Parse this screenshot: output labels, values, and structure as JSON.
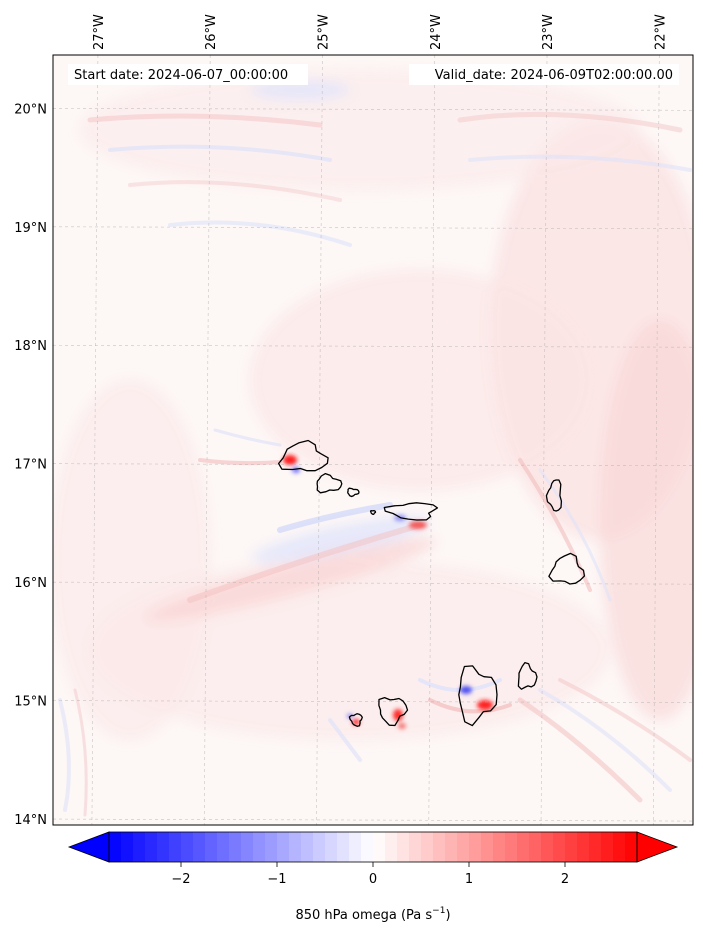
{
  "map": {
    "start_date": "Start date: 2024-06-07_00:00:00",
    "valid_date": "Valid_date: 2024-06-09T02:00:00.00",
    "lon_range": [
      -27.4,
      -21.7
    ],
    "lat_range": [
      13.95,
      20.45
    ],
    "lon_ticks": [
      {
        "value": -27,
        "label": "27°W"
      },
      {
        "value": -26,
        "label": "26°W"
      },
      {
        "value": -25,
        "label": "25°W"
      },
      {
        "value": -24,
        "label": "24°W"
      },
      {
        "value": -23,
        "label": "23°W"
      },
      {
        "value": -22,
        "label": "22°W"
      }
    ],
    "lat_ticks": [
      {
        "value": 20,
        "label": "20°N"
      },
      {
        "value": 19,
        "label": "19°N"
      },
      {
        "value": 18,
        "label": "18°N"
      },
      {
        "value": 17,
        "label": "17°N"
      },
      {
        "value": 16,
        "label": "16°N"
      },
      {
        "value": 15,
        "label": "15°N"
      },
      {
        "value": 14,
        "label": "14°N"
      }
    ],
    "islands": [
      {
        "name": "Santo Antao",
        "lon": -25.17,
        "lat": 17.05,
        "rlon": 0.2,
        "rlat": 0.12
      },
      {
        "name": "Sao Vicente",
        "lon": -24.95,
        "lat": 16.83,
        "rlon": 0.11,
        "rlat": 0.07
      },
      {
        "name": "Santa Luzia",
        "lon": -24.73,
        "lat": 16.76,
        "rlon": 0.05,
        "rlat": 0.03
      },
      {
        "name": "Branco",
        "lon": -24.55,
        "lat": 16.59,
        "rlon": 0.02,
        "rlat": 0.015
      },
      {
        "name": "Sao Nicolau",
        "lon": -24.2,
        "lat": 16.6,
        "rlon": 0.21,
        "rlat": 0.07
      },
      {
        "name": "Sal",
        "lon": -22.93,
        "lat": 16.73,
        "rlon": 0.06,
        "rlat": 0.13
      },
      {
        "name": "Boa Vista",
        "lon": -22.82,
        "lat": 16.1,
        "rlon": 0.14,
        "rlat": 0.12
      },
      {
        "name": "Maio",
        "lon": -23.18,
        "lat": 15.2,
        "rlon": 0.08,
        "rlat": 0.1
      },
      {
        "name": "Santiago",
        "lon": -23.63,
        "lat": 15.05,
        "rlon": 0.17,
        "rlat": 0.22
      },
      {
        "name": "Fogo",
        "lon": -24.38,
        "lat": 14.92,
        "rlon": 0.12,
        "rlat": 0.11
      },
      {
        "name": "Brava",
        "lon": -24.7,
        "lat": 14.84,
        "rlon": 0.05,
        "rlat": 0.05
      }
    ],
    "colors": {
      "negative": "#0000ff",
      "neutral": "#ffffff",
      "positive": "#ff0000",
      "coastline": "#000000",
      "gridline": "#b0b0b0"
    }
  },
  "colorbar": {
    "vmin": -2.75,
    "vmax": 2.75,
    "ticks": [
      {
        "value": -2,
        "label": "−2"
      },
      {
        "value": -1,
        "label": "−1"
      },
      {
        "value": 0,
        "label": "0"
      },
      {
        "value": 1,
        "label": "1"
      },
      {
        "value": 2,
        "label": "2"
      }
    ],
    "label_main": "850 hPa omega (Pa s",
    "label_exp": "−1",
    "label_close": ")"
  }
}
